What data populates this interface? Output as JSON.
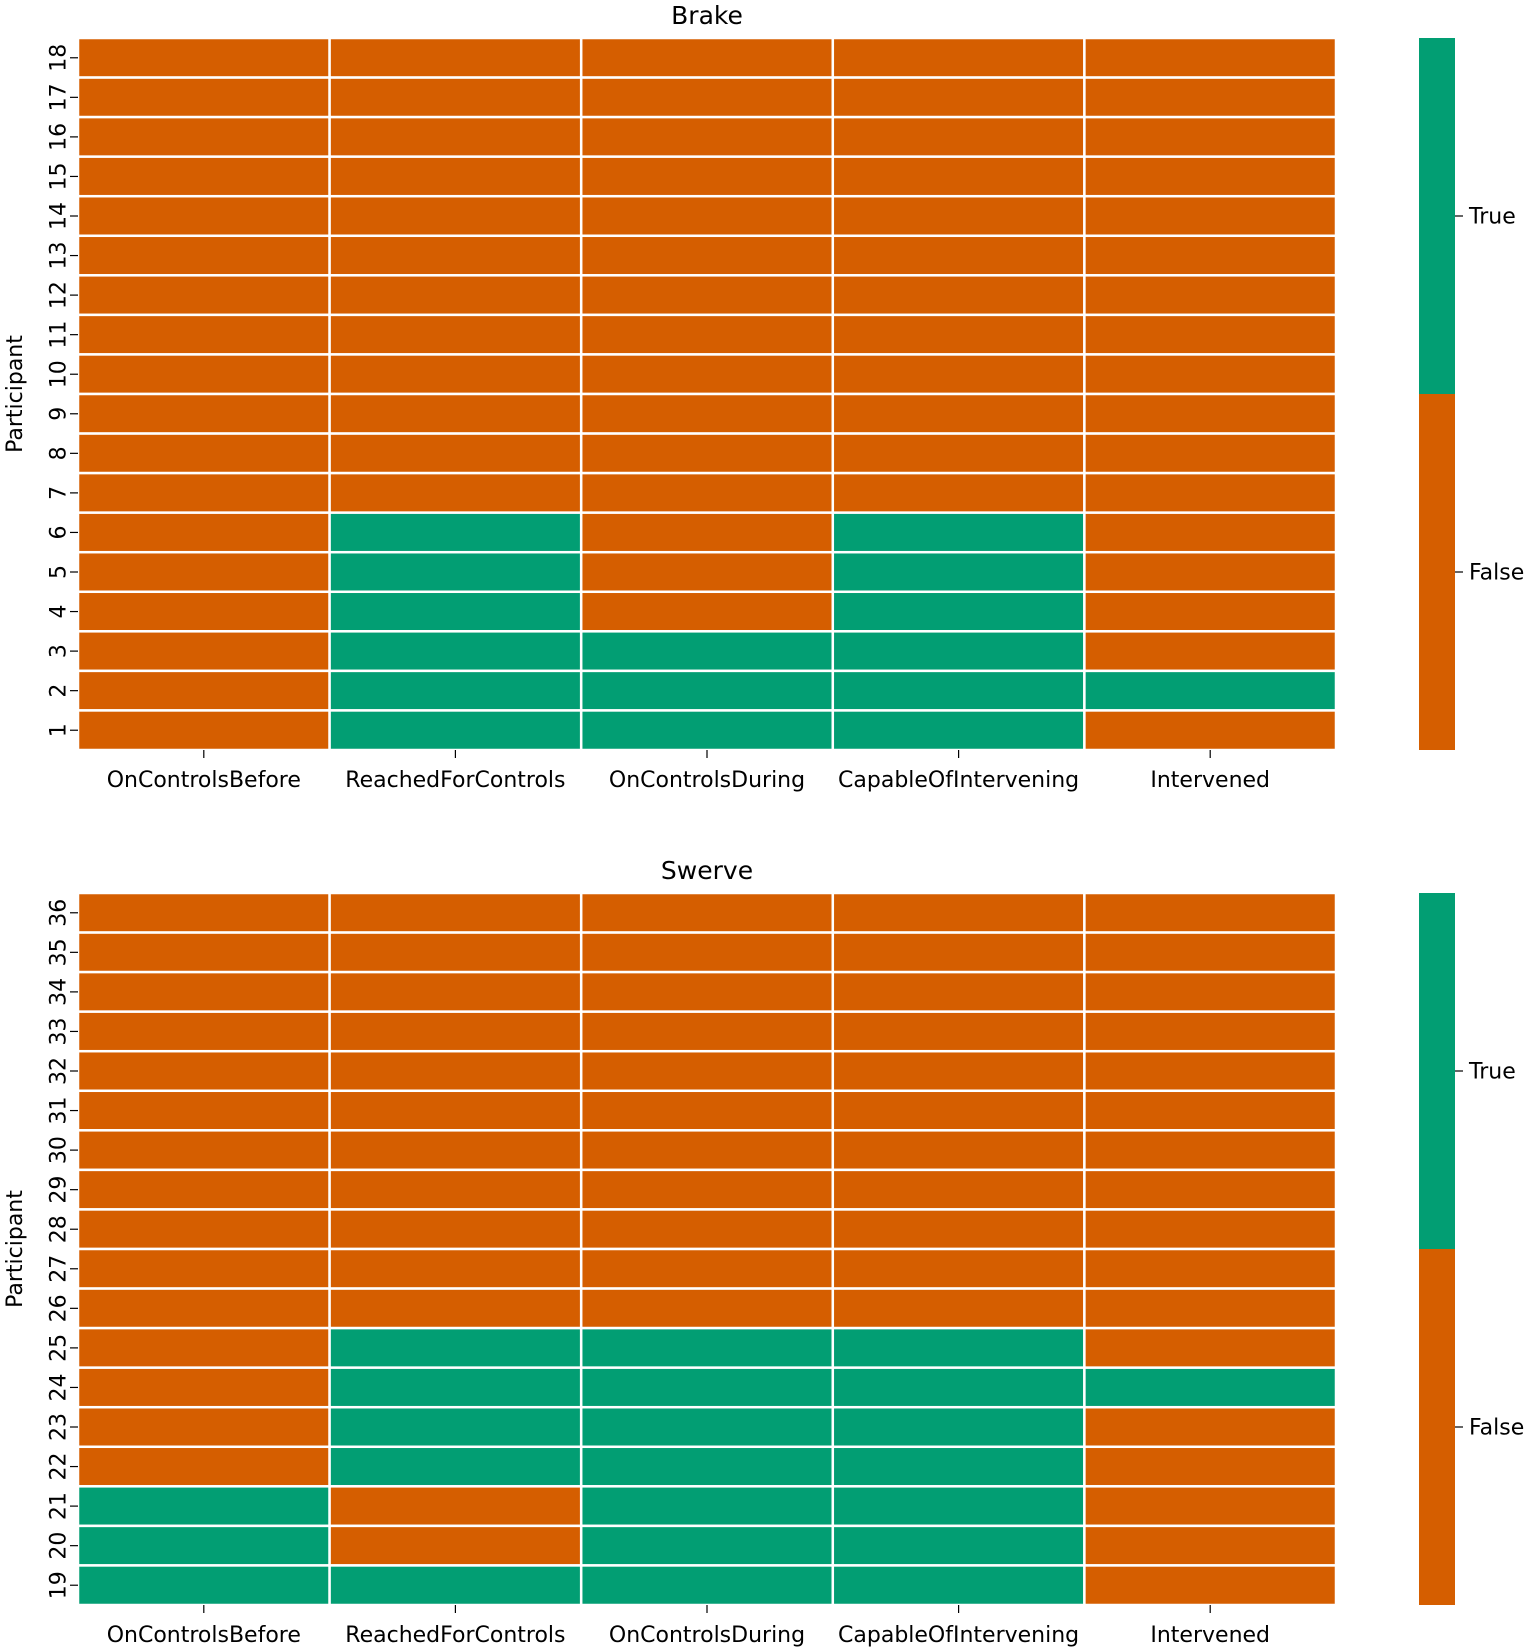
{
  "colors": {
    "true": "#029e73",
    "false": "#d55e00",
    "grid": "#ffffff",
    "text": "#000000"
  },
  "chart_data": [
    {
      "type": "heatmap",
      "title": "Brake",
      "ylabel": "Participant",
      "xlabel": "",
      "columns": [
        "OnControlsBefore",
        "ReachedForControls",
        "OnControlsDuring",
        "CapableOfIntervening",
        "Intervened"
      ],
      "rows": [
        "18",
        "17",
        "16",
        "15",
        "14",
        "13",
        "12",
        "11",
        "10",
        "9",
        "8",
        "7",
        "6",
        "5",
        "4",
        "3",
        "2",
        "1"
      ],
      "values": [
        [
          false,
          false,
          false,
          false,
          false
        ],
        [
          false,
          false,
          false,
          false,
          false
        ],
        [
          false,
          false,
          false,
          false,
          false
        ],
        [
          false,
          false,
          false,
          false,
          false
        ],
        [
          false,
          false,
          false,
          false,
          false
        ],
        [
          false,
          false,
          false,
          false,
          false
        ],
        [
          false,
          false,
          false,
          false,
          false
        ],
        [
          false,
          false,
          false,
          false,
          false
        ],
        [
          false,
          false,
          false,
          false,
          false
        ],
        [
          false,
          false,
          false,
          false,
          false
        ],
        [
          false,
          false,
          false,
          false,
          false
        ],
        [
          false,
          false,
          false,
          false,
          false
        ],
        [
          false,
          true,
          false,
          true,
          false
        ],
        [
          false,
          true,
          false,
          true,
          false
        ],
        [
          false,
          true,
          false,
          true,
          false
        ],
        [
          false,
          true,
          true,
          true,
          false
        ],
        [
          false,
          true,
          true,
          true,
          true
        ],
        [
          false,
          true,
          true,
          true,
          false
        ]
      ],
      "colorbar": {
        "labels": [
          "True",
          "False"
        ]
      }
    },
    {
      "type": "heatmap",
      "title": "Swerve",
      "ylabel": "Participant",
      "xlabel": "",
      "columns": [
        "OnControlsBefore",
        "ReachedForControls",
        "OnControlsDuring",
        "CapableOfIntervening",
        "Intervened"
      ],
      "rows": [
        "36",
        "35",
        "34",
        "33",
        "32",
        "31",
        "30",
        "29",
        "28",
        "27",
        "26",
        "25",
        "24",
        "23",
        "22",
        "21",
        "20",
        "19"
      ],
      "values": [
        [
          false,
          false,
          false,
          false,
          false
        ],
        [
          false,
          false,
          false,
          false,
          false
        ],
        [
          false,
          false,
          false,
          false,
          false
        ],
        [
          false,
          false,
          false,
          false,
          false
        ],
        [
          false,
          false,
          false,
          false,
          false
        ],
        [
          false,
          false,
          false,
          false,
          false
        ],
        [
          false,
          false,
          false,
          false,
          false
        ],
        [
          false,
          false,
          false,
          false,
          false
        ],
        [
          false,
          false,
          false,
          false,
          false
        ],
        [
          false,
          false,
          false,
          false,
          false
        ],
        [
          false,
          false,
          false,
          false,
          false
        ],
        [
          false,
          true,
          true,
          true,
          false
        ],
        [
          false,
          true,
          true,
          true,
          true
        ],
        [
          false,
          true,
          true,
          true,
          false
        ],
        [
          false,
          true,
          true,
          true,
          false
        ],
        [
          true,
          false,
          true,
          true,
          false
        ],
        [
          true,
          false,
          true,
          true,
          false
        ],
        [
          true,
          true,
          true,
          true,
          false
        ]
      ],
      "colorbar": {
        "labels": [
          "True",
          "False"
        ]
      }
    }
  ]
}
